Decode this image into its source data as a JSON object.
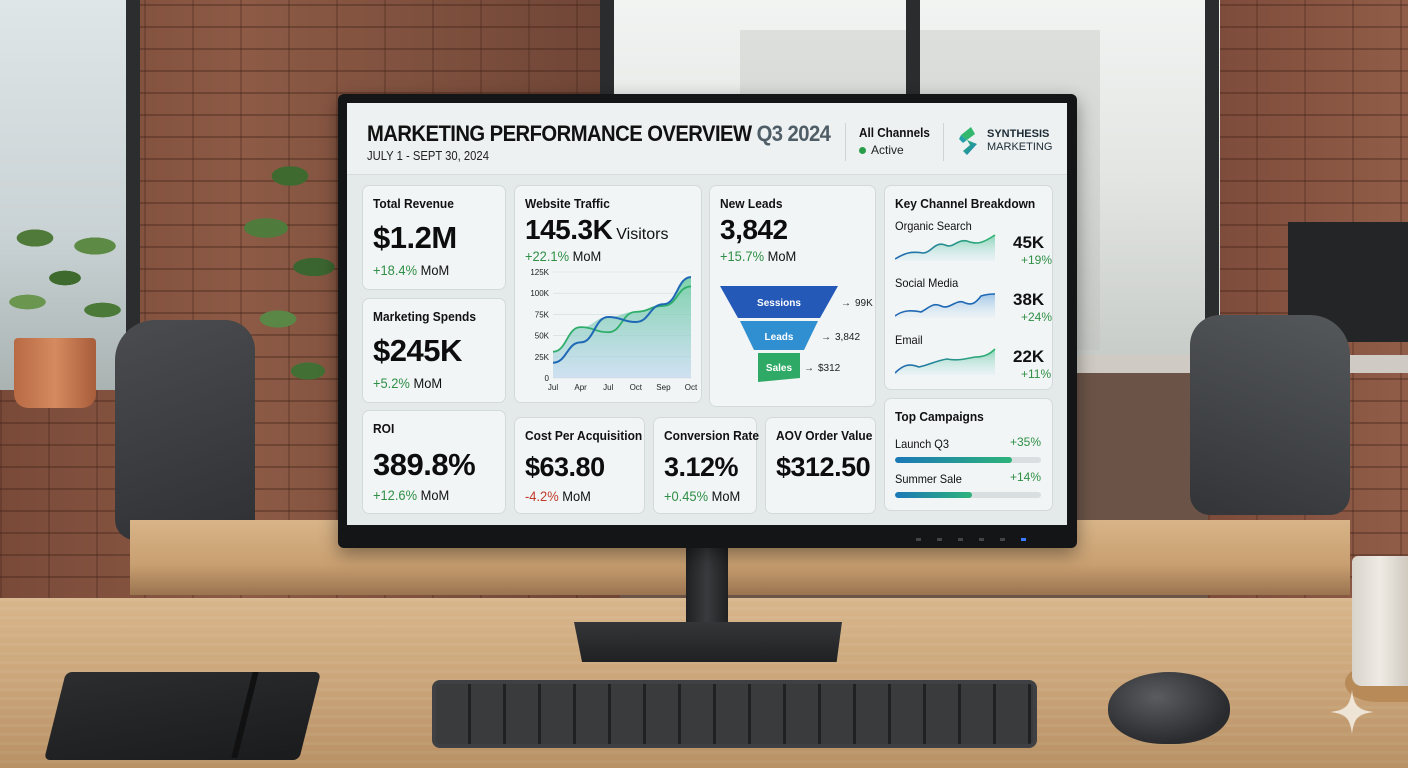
{
  "dashboard": {
    "title": "MARKETING PERFORMANCE OVERVIEW",
    "title_period": "Q3 2024",
    "date_range": "JULY 1 - SEPT 30, 2024",
    "channel_filter": {
      "label": "All Channels",
      "status": "Active",
      "status_color": "#2a9d4a"
    },
    "brand": {
      "line1": "SYNTHESIS",
      "line2": "MARKETING",
      "icon": "synthesis-s-logo-icon"
    }
  },
  "kpis": {
    "total_revenue": {
      "title": "Total Revenue",
      "value": "$1.2M",
      "delta": "+18.4%",
      "delta_suffix": "MoM",
      "trend": "up"
    },
    "marketing_spends": {
      "title": "Marketing Spends",
      "value": "$245K",
      "delta": "+5.2%",
      "delta_suffix": "MoM",
      "trend": "up"
    },
    "roi": {
      "title": "ROI",
      "value": "389.8%",
      "delta": "+12.6%",
      "delta_suffix": "MoM",
      "trend": "up"
    },
    "cost_per_acquisition": {
      "title": "Cost Per Acquisition",
      "value": "$63.80",
      "delta": "-4.2%",
      "delta_suffix": "MoM",
      "trend": "down"
    },
    "conversion_rate": {
      "title": "Conversion Rate",
      "value": "3.12%",
      "delta": "+0.45%",
      "delta_suffix": "MoM",
      "trend": "up"
    },
    "aov": {
      "title": "AOV Order Value",
      "value": "$312.50"
    }
  },
  "website_traffic": {
    "title": "Website Traffic",
    "value": "145.3K",
    "unit": "Visitors",
    "delta": "+22.1%",
    "delta_suffix": "MoM"
  },
  "new_leads": {
    "title": "New Leads",
    "value": "3,842",
    "delta": "+15.7%",
    "delta_suffix": "MoM",
    "funnel": [
      {
        "stage": "Sessions",
        "value": "99K",
        "color": "#2459b8"
      },
      {
        "stage": "Leads",
        "value": "3,842",
        "color": "#2f8fd0"
      },
      {
        "stage": "Sales",
        "value": "$312",
        "color": "#2eaa66"
      }
    ]
  },
  "key_channels": {
    "title": "Key Channel Breakdown",
    "items": [
      {
        "name": "Organic Search",
        "value": "45K",
        "delta": "+19%"
      },
      {
        "name": "Social Media",
        "value": "38K",
        "delta": "+24%"
      },
      {
        "name": "Email",
        "value": "22K",
        "delta": "+11%"
      }
    ]
  },
  "top_campaigns": {
    "title": "Top Campaigns",
    "items": [
      {
        "name": "Launch Q3",
        "delta": "+35%",
        "progress": 80
      },
      {
        "name": "Summer Sale",
        "delta": "+14%",
        "progress": 53
      }
    ]
  },
  "chart_data": {
    "type": "line",
    "title": "Website Traffic",
    "xlabel": "",
    "ylabel": "",
    "categories": [
      "Jul",
      "Apr",
      "Jul",
      "Oct",
      "Sep",
      "Oct"
    ],
    "y_ticks": [
      "0",
      "25K",
      "50K",
      "75K",
      "100K",
      "125K"
    ],
    "ylim": [
      0,
      125000
    ],
    "grid": true,
    "legend": "none",
    "series": [
      {
        "name": "Series A (green, area)",
        "color": "#2fae6b",
        "values": [
          31000,
          60000,
          54000,
          78000,
          85000,
          108000
        ]
      },
      {
        "name": "Series B (blue)",
        "color": "#1f68b5",
        "values": [
          18000,
          42000,
          72000,
          66000,
          87000,
          119000
        ]
      }
    ]
  },
  "scene": {
    "watermark_icon": "sparkle-icon"
  }
}
